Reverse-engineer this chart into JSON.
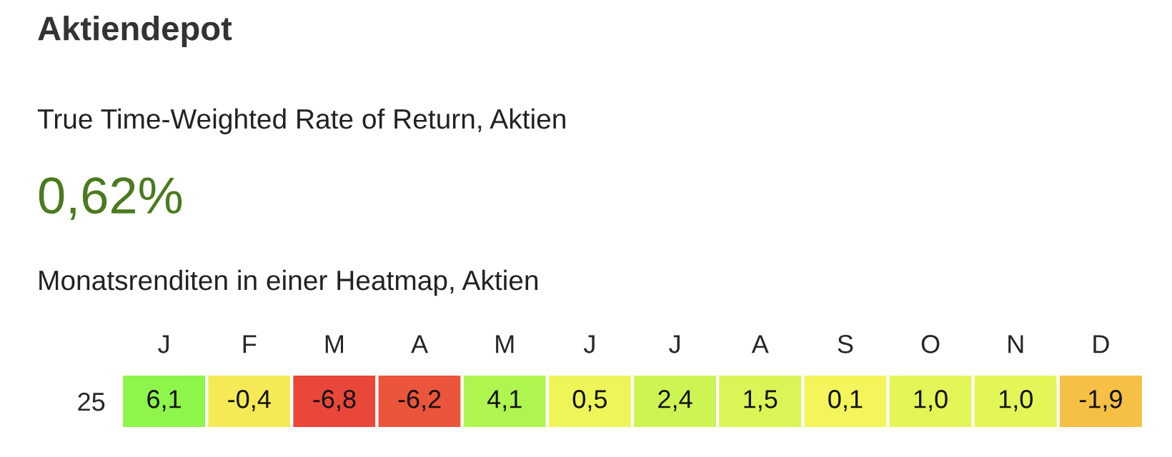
{
  "chart_data": {
    "type": "heatmap",
    "title": "Aktiendepot",
    "subtitle": "True Time-Weighted Rate of Return, Aktien",
    "annotations": [
      "0,62%",
      "Monatsrenditen in einer Heatmap, Aktien"
    ],
    "categories": [
      "J",
      "F",
      "M",
      "A",
      "M",
      "J",
      "J",
      "A",
      "S",
      "O",
      "N",
      "D"
    ],
    "y_categories": [
      "25"
    ],
    "cells": [
      [
        6.1,
        -0.4,
        -6.8,
        -6.2,
        4.1,
        0.5,
        2.4,
        1.5,
        0.1,
        1.0,
        1.0,
        -1.9
      ]
    ],
    "cell_labels": [
      [
        "6,1",
        "-0,4",
        "-6,8",
        "-6,2",
        "4,1",
        "0,5",
        "2,4",
        "1,5",
        "0,1",
        "1,0",
        "1,0",
        "-1,9"
      ]
    ]
  }
}
